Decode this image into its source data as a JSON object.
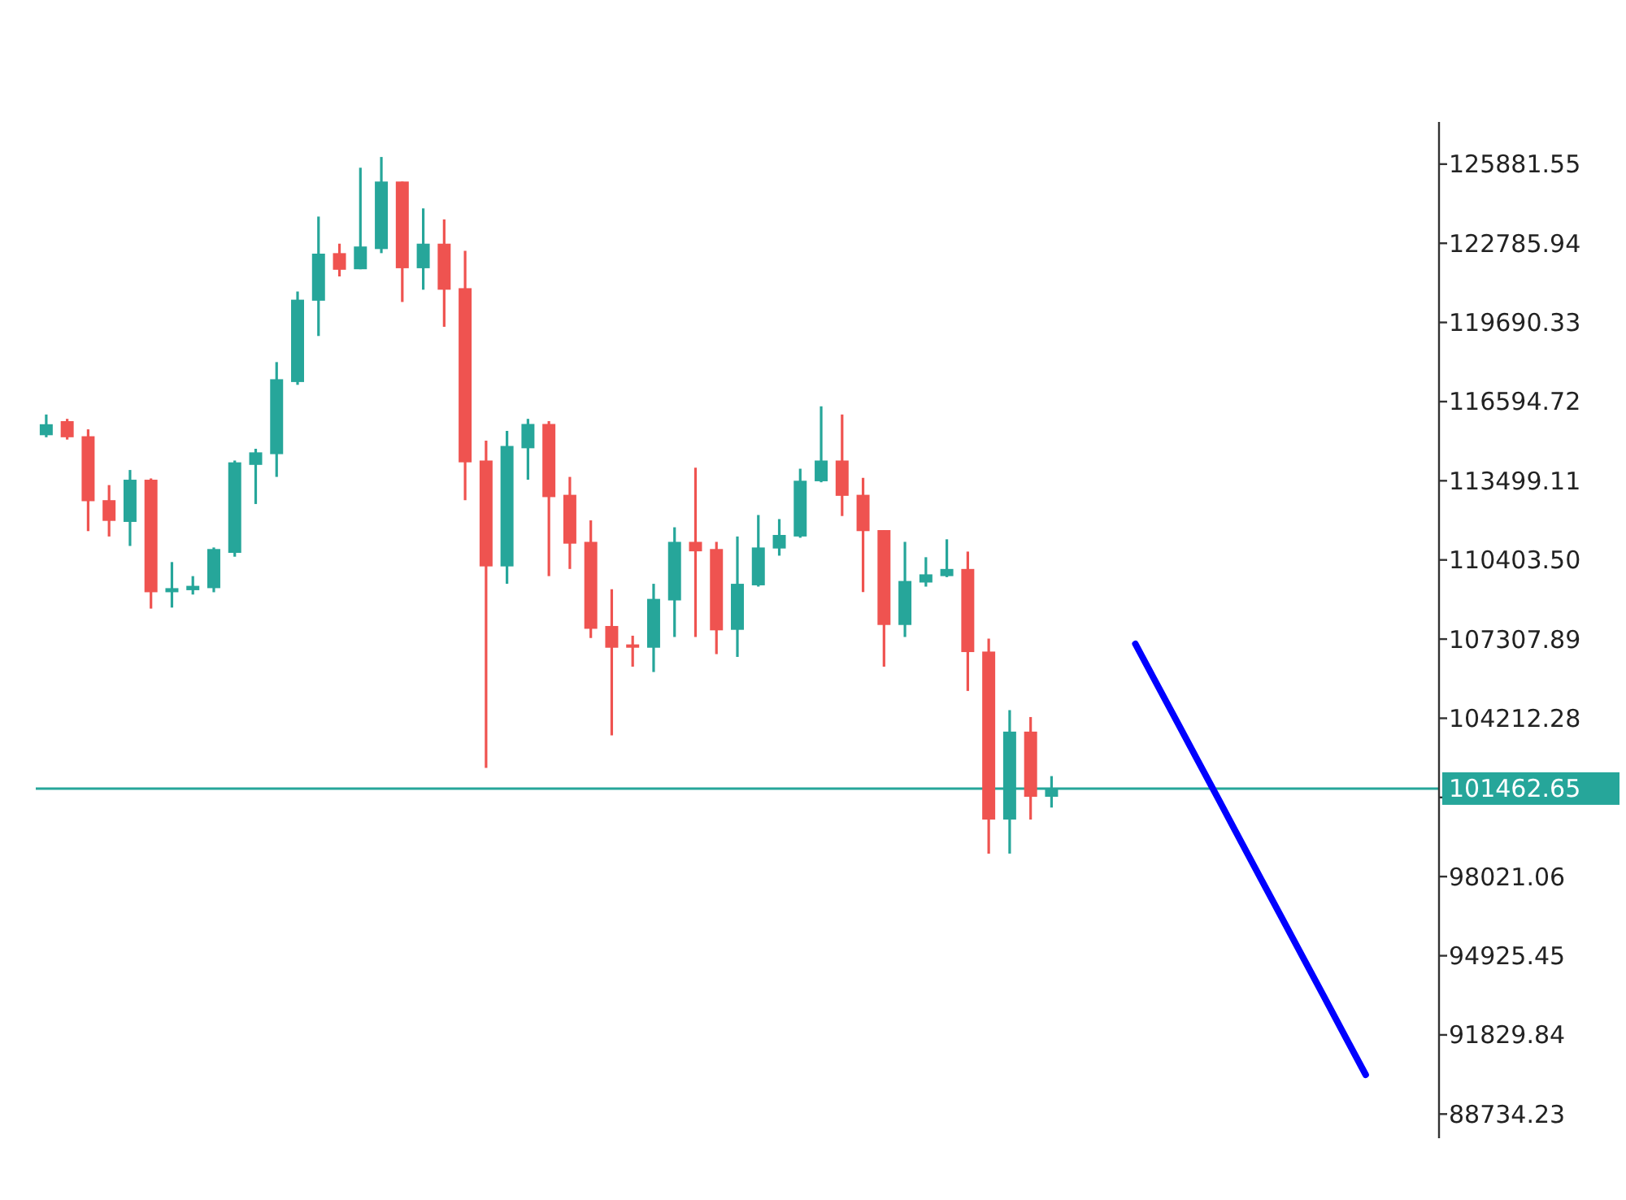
{
  "chart_data": {
    "type": "candlestick",
    "categories": [
      null,
      null,
      null,
      null,
      null,
      null,
      null,
      null,
      null,
      null,
      null,
      null,
      null,
      null,
      null,
      null,
      null,
      null,
      null,
      null,
      null,
      null,
      null,
      null,
      null,
      null,
      null,
      null,
      null,
      null,
      null,
      null,
      null,
      null,
      null,
      null,
      null,
      null,
      null,
      null,
      null,
      null,
      null,
      null,
      null,
      null,
      null,
      null,
      null,
      null,
      null,
      null,
      null,
      null,
      null,
      null,
      null,
      null,
      null,
      null,
      null,
      null,
      null,
      null,
      null,
      null,
      null
    ],
    "series": [
      {
        "type": "candlestick",
        "ohlc": [
          [
            115280,
            116090,
            115200,
            115710
          ],
          [
            115830,
            115920,
            115110,
            115200
          ],
          [
            115240,
            115510,
            111530,
            112700
          ],
          [
            112740,
            113330,
            111320,
            111930
          ],
          [
            111890,
            113920,
            110950,
            113540
          ],
          [
            113540,
            113590,
            108500,
            109140
          ],
          [
            109140,
            110320,
            108540,
            109300
          ],
          [
            109220,
            109770,
            109050,
            109390
          ],
          [
            109300,
            110890,
            109140,
            110830
          ],
          [
            110680,
            114290,
            110530,
            114220
          ],
          [
            114120,
            114750,
            112590,
            114610
          ],
          [
            114540,
            118140,
            113650,
            117470
          ],
          [
            117360,
            120900,
            117250,
            120580
          ],
          [
            120540,
            123830,
            119160,
            122380
          ],
          [
            122400,
            122770,
            121490,
            121750
          ],
          [
            121770,
            125740,
            121770,
            122660
          ],
          [
            122560,
            126160,
            122400,
            125200
          ],
          [
            125200,
            125200,
            120490,
            121810
          ],
          [
            121810,
            124150,
            120970,
            122770
          ],
          [
            122770,
            123720,
            119520,
            120970
          ],
          [
            121030,
            122490,
            112740,
            114220
          ],
          [
            114290,
            115070,
            102270,
            110150
          ],
          [
            110150,
            115450,
            109470,
            114860
          ],
          [
            114770,
            115920,
            113540,
            115720
          ],
          [
            115720,
            115830,
            109770,
            112860
          ],
          [
            112950,
            113650,
            110050,
            111040
          ],
          [
            111110,
            111950,
            107350,
            107710
          ],
          [
            107820,
            109260,
            103540,
            106970
          ],
          [
            107100,
            107440,
            106230,
            106970
          ],
          [
            106970,
            109470,
            106020,
            108880
          ],
          [
            108820,
            111680,
            107390,
            111110
          ],
          [
            111110,
            114010,
            107390,
            110740
          ],
          [
            110830,
            111110,
            106720,
            107650
          ],
          [
            107670,
            111320,
            106610,
            109470
          ],
          [
            109410,
            112160,
            109360,
            110890
          ],
          [
            110850,
            112000,
            110570,
            111380
          ],
          [
            111320,
            113970,
            111270,
            113500
          ],
          [
            113480,
            116410,
            113440,
            114290
          ],
          [
            114290,
            116090,
            112120,
            112910
          ],
          [
            112950,
            113610,
            109150,
            111530
          ],
          [
            111570,
            111570,
            106230,
            107860
          ],
          [
            107860,
            111110,
            107390,
            109580
          ],
          [
            109520,
            110510,
            109360,
            109840
          ],
          [
            109770,
            111210,
            109730,
            110050
          ],
          [
            110050,
            110730,
            105280,
            106800
          ],
          [
            106820,
            107330,
            98920,
            100250
          ],
          [
            100250,
            104530,
            98920,
            103690
          ],
          [
            103690,
            104260,
            100250,
            101140
          ],
          [
            101140,
            101950,
            100720,
            101460
          ],
          null,
          null,
          null,
          null,
          null,
          null,
          null,
          null,
          null,
          null,
          null,
          null,
          null,
          null,
          null,
          null,
          null,
          null
        ],
        "colors": [
          "#26a69a",
          "#ef5350",
          "#ef5350",
          "#ef5350",
          "#26a69a",
          "#ef5350",
          "#26a69a",
          "#26a69a",
          "#26a69a",
          "#26a69a",
          "#26a69a",
          "#26a69a",
          "#26a69a",
          "#26a69a",
          "#ef5350",
          "#26a69a",
          "#26a69a",
          "#ef5350",
          "#26a69a",
          "#ef5350",
          "#ef5350",
          "#ef5350",
          "#26a69a",
          "#26a69a",
          "#ef5350",
          "#ef5350",
          "#ef5350",
          "#ef5350",
          "#ef5350",
          "#26a69a",
          "#26a69a",
          "#ef5350",
          "#ef5350",
          "#26a69a",
          "#26a69a",
          "#26a69a",
          "#26a69a",
          "#26a69a",
          "#ef5350",
          "#ef5350",
          "#ef5350",
          "#26a69a",
          "#26a69a",
          "#26a69a",
          "#ef5350",
          "#ef5350",
          "#26a69a",
          "#ef5350",
          "#26a69a",
          null,
          null,
          null,
          null,
          null,
          null,
          null,
          null,
          null,
          null,
          null,
          null,
          null,
          null,
          null,
          null,
          null,
          null
        ]
      },
      {
        "type": "line",
        "values": [
          null,
          null,
          null,
          null,
          null,
          null,
          null,
          null,
          null,
          null,
          null,
          null,
          null,
          null,
          null,
          null,
          null,
          null,
          null,
          null,
          null,
          null,
          null,
          null,
          null,
          null,
          null,
          null,
          null,
          null,
          null,
          null,
          null,
          null,
          null,
          null,
          null,
          null,
          null,
          null,
          null,
          null,
          null,
          null,
          null,
          null,
          null,
          null,
          null,
          null,
          null,
          null,
          107120,
          105590,
          104060,
          102530,
          101000,
          99460,
          97930,
          96400,
          94870,
          93340,
          91800,
          90270,
          null,
          null,
          null
        ],
        "color": "#0000ff"
      }
    ],
    "ylim": [
      87790,
      127530
    ],
    "yticks": [
      {
        "value": 125881.55,
        "label": "125881.55"
      },
      {
        "value": 122785.94,
        "label": "122785.94"
      },
      {
        "value": 119690.33,
        "label": "119690.33"
      },
      {
        "value": 116594.72,
        "label": "116594.72"
      },
      {
        "value": 113499.11,
        "label": "113499.11"
      },
      {
        "value": 110403.5,
        "label": "110403.50"
      },
      {
        "value": 107307.89,
        "label": "107307.89"
      },
      {
        "value": 104212.28,
        "label": "104212.28"
      },
      {
        "value": 101116.67,
        "label": null
      },
      {
        "value": 98021.06,
        "label": "98021.06"
      },
      {
        "value": 94925.45,
        "label": "94925.45"
      },
      {
        "value": 91829.84,
        "label": "91829.84"
      },
      {
        "value": 88734.23,
        "label": "88734.23"
      }
    ],
    "ref_lines": [
      {
        "axis": "y",
        "value": 101462.65,
        "label": "101462.65",
        "color": "#26a69a"
      }
    ],
    "tick_labels": "y"
  }
}
